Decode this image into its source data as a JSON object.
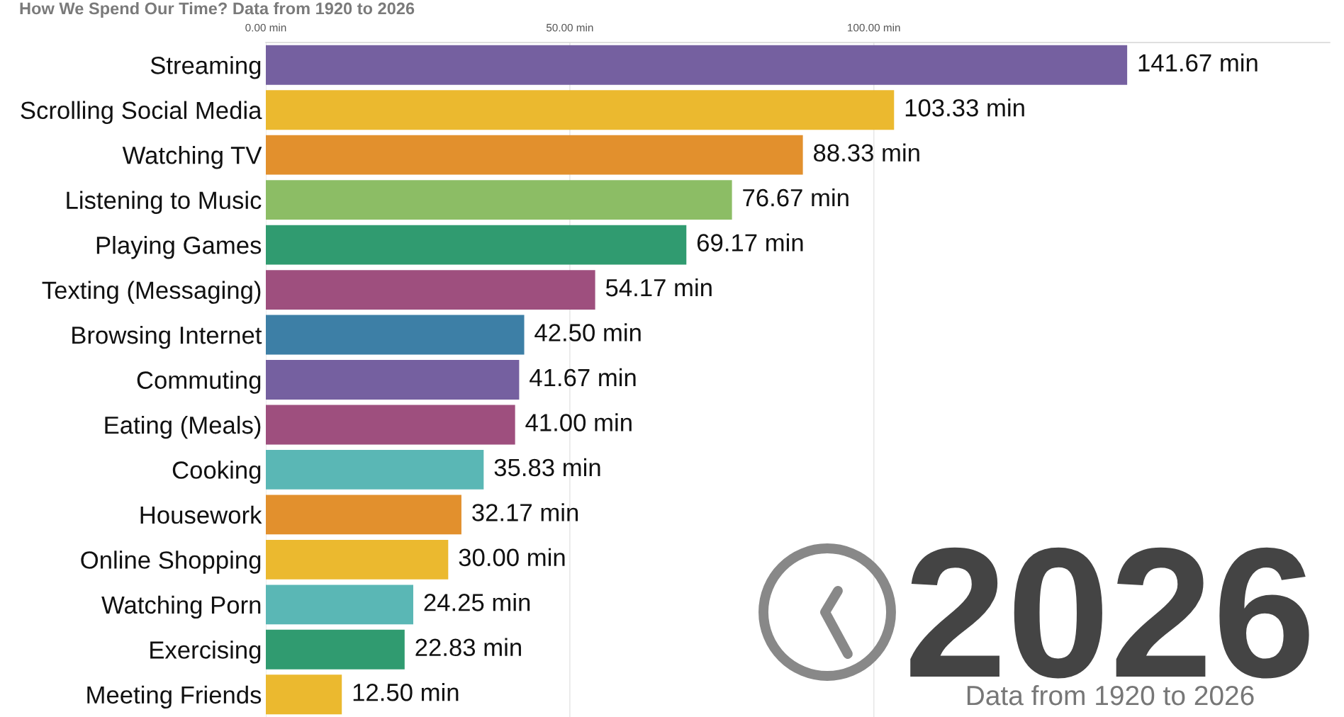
{
  "chart_data": {
    "type": "bar",
    "orientation": "horizontal",
    "title": "How We Spend Our Time? Data from 1920 to 2026",
    "categories": [
      "Streaming",
      "Scrolling Social Media",
      "Watching TV",
      "Listening to Music",
      "Playing Games",
      "Texting (Messaging)",
      "Browsing Internet",
      "Commuting",
      "Eating (Meals)",
      "Cooking",
      "Housework",
      "Online Shopping",
      "Watching Porn",
      "Exercising",
      "Meeting Friends"
    ],
    "values": [
      141.67,
      103.33,
      88.33,
      76.67,
      69.17,
      54.17,
      42.5,
      41.67,
      41.0,
      35.83,
      32.17,
      30.0,
      24.25,
      22.83,
      12.5
    ],
    "colors": [
      "#7560a0",
      "#ebb92f",
      "#e2902d",
      "#8cbd65",
      "#309b70",
      "#9e4f7e",
      "#3d7fa6",
      "#7560a0",
      "#9e4f7e",
      "#5ab7b5",
      "#e2902d",
      "#ebb92f",
      "#5ab7b5",
      "#309b70",
      "#ebb92f"
    ],
    "value_labels": [
      "141.67 min",
      "103.33 min",
      "88.33 min",
      "76.67 min",
      "69.17 min",
      "54.17 min",
      "42.50 min",
      "41.67 min",
      "41.00 min",
      "35.83 min",
      "32.17 min",
      "30.00 min",
      "24.25 min",
      "22.83 min",
      "12.50 min"
    ],
    "xlim": [
      0,
      175
    ],
    "xticks": [
      {
        "value": 0,
        "label": "0.00 min"
      },
      {
        "value": 50,
        "label": "50.00 min"
      },
      {
        "value": 100,
        "label": "100.00 min"
      }
    ],
    "grid": "x",
    "annotations": [
      "2026",
      "Data from 1920 to 2026"
    ]
  }
}
